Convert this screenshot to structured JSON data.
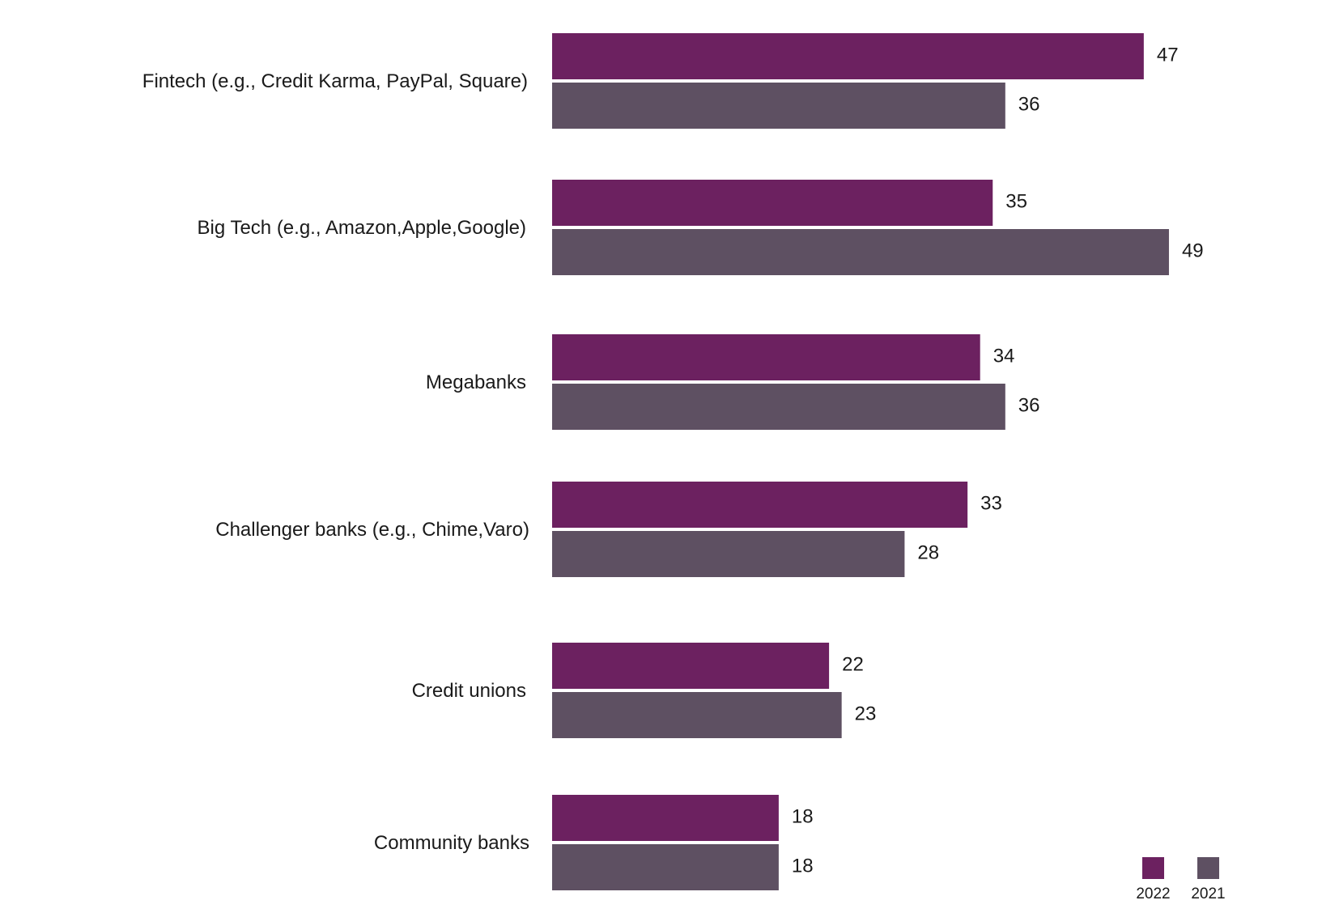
{
  "chart_data": {
    "type": "bar",
    "orientation": "horizontal",
    "categories": [
      "Fintech (e.g., Credit Karma, PayPal, Square)",
      "Big Tech (e.g., Amazon,Apple,Google)",
      "Megabanks",
      "Challenger banks (e.g., Chime,Varo)",
      "Credit unions",
      "Community banks"
    ],
    "series": [
      {
        "name": "2022",
        "color": "#6c2160",
        "values": [
          47,
          35,
          34,
          33,
          22,
          18
        ]
      },
      {
        "name": "2021",
        "color": "#5e5062",
        "values": [
          36,
          49,
          36,
          28,
          23,
          18
        ]
      }
    ],
    "title": "",
    "xlabel": "",
    "ylabel": "",
    "xlim": [
      0,
      50
    ],
    "grid": false,
    "data_labels": true,
    "legend_position": "bottom-right"
  }
}
